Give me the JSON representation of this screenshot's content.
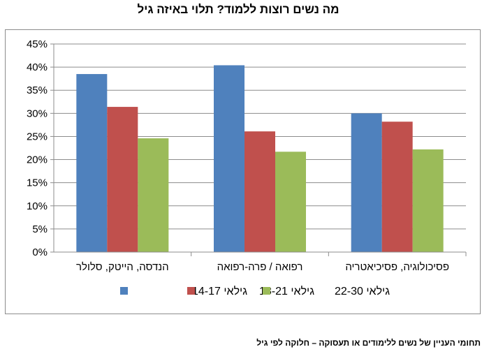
{
  "page": {
    "title": "מה נשים רוצות ללמוד? תלוי באיזה גיל",
    "caption": "תחומי העניין של נשים ללימודים או תעסוקה – חלוקה לפי גיל"
  },
  "colors": {
    "series": [
      "#4f81bd",
      "#c0504d",
      "#9bbb59"
    ],
    "grid": "#8c8c8c",
    "axis": "#8c8c8c"
  },
  "chart_data": {
    "type": "bar",
    "title": "מה נשים רוצות ללמוד? תלוי באיזה גיל",
    "xlabel": "",
    "ylabel": "",
    "ylim": [
      0,
      45
    ],
    "yticks": [
      0,
      5,
      10,
      15,
      20,
      25,
      30,
      35,
      40,
      45
    ],
    "ytick_labels": [
      "0%",
      "5%",
      "10%",
      "15%",
      "20%",
      "25%",
      "30%",
      "35%",
      "40%",
      "45%"
    ],
    "grid": true,
    "legend_position": "bottom",
    "categories": [
      "הנדסה, הייטק, סלולר",
      "רפואה / פרה-רפואה",
      "פסיכולוגיה, פסיכיאטריה"
    ],
    "series": [
      {
        "name": "גילאי 14-17",
        "values": [
          38.5,
          40.4,
          30.0
        ]
      },
      {
        "name": "גילאי 18-21",
        "values": [
          31.4,
          26.1,
          28.2
        ]
      },
      {
        "name": "גילאי 22-30",
        "values": [
          24.6,
          21.7,
          22.2
        ]
      }
    ]
  }
}
